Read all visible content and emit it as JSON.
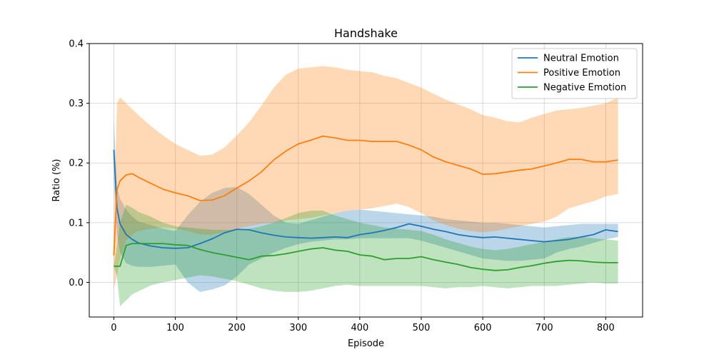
{
  "chart_data": {
    "type": "line",
    "title": "Handshake",
    "xlabel": "Episode",
    "ylabel": "Ratio (%)",
    "xlim": [
      -40,
      860
    ],
    "ylim": [
      -0.058,
      0.4
    ],
    "xticks": [
      0,
      100,
      200,
      300,
      400,
      500,
      600,
      700,
      800
    ],
    "yticks": [
      0.0,
      0.1,
      0.2,
      0.3,
      0.4
    ],
    "xtick_labels": [
      "0",
      "100",
      "200",
      "300",
      "400",
      "500",
      "600",
      "700",
      "800"
    ],
    "ytick_labels": [
      "0.0",
      "0.1",
      "0.2",
      "0.3",
      "0.4"
    ],
    "grid": true,
    "legend_position": "top-right",
    "series": [
      {
        "name": "Neutral Emotion",
        "color": "#1f77b4",
        "x": [
          0,
          5,
          10,
          20,
          30,
          40,
          60,
          80,
          100,
          120,
          140,
          160,
          180,
          200,
          220,
          240,
          260,
          280,
          300,
          320,
          340,
          360,
          380,
          400,
          420,
          440,
          460,
          480,
          500,
          520,
          540,
          560,
          580,
          600,
          620,
          640,
          660,
          680,
          700,
          720,
          740,
          760,
          780,
          800,
          820
        ],
        "y": [
          0.222,
          0.125,
          0.098,
          0.08,
          0.072,
          0.066,
          0.061,
          0.058,
          0.057,
          0.058,
          0.065,
          0.073,
          0.083,
          0.089,
          0.088,
          0.083,
          0.079,
          0.076,
          0.075,
          0.074,
          0.075,
          0.076,
          0.075,
          0.08,
          0.083,
          0.087,
          0.092,
          0.098,
          0.094,
          0.089,
          0.085,
          0.08,
          0.077,
          0.075,
          0.076,
          0.074,
          0.072,
          0.07,
          0.068,
          0.07,
          0.072,
          0.076,
          0.08,
          0.088,
          0.085
        ],
        "lower": [
          0.17,
          0.08,
          0.05,
          0.032,
          0.028,
          0.026,
          0.026,
          0.028,
          0.03,
          0.0,
          -0.016,
          -0.012,
          -0.005,
          0.01,
          0.03,
          0.04,
          0.05,
          0.058,
          0.064,
          0.068,
          0.07,
          0.072,
          0.072,
          0.074,
          0.074,
          0.074,
          0.074,
          0.074,
          0.07,
          0.064,
          0.058,
          0.052,
          0.046,
          0.04,
          0.038,
          0.036,
          0.036,
          0.038,
          0.04,
          0.05,
          0.056,
          0.06,
          0.066,
          0.072,
          0.076
        ],
        "upper": [
          0.275,
          0.16,
          0.14,
          0.122,
          0.11,
          0.102,
          0.096,
          0.09,
          0.086,
          0.112,
          0.135,
          0.15,
          0.158,
          0.16,
          0.148,
          0.13,
          0.112,
          0.1,
          0.098,
          0.104,
          0.11,
          0.116,
          0.12,
          0.122,
          0.12,
          0.118,
          0.116,
          0.114,
          0.112,
          0.11,
          0.106,
          0.104,
          0.102,
          0.1,
          0.1,
          0.098,
          0.096,
          0.094,
          0.092,
          0.094,
          0.096,
          0.098,
          0.098,
          0.098,
          0.098
        ]
      },
      {
        "name": "Positive Emotion",
        "color": "#ff7f0e",
        "x": [
          0,
          5,
          10,
          20,
          30,
          40,
          60,
          80,
          100,
          120,
          140,
          160,
          180,
          200,
          220,
          240,
          260,
          280,
          300,
          320,
          340,
          360,
          380,
          400,
          420,
          440,
          460,
          480,
          500,
          520,
          540,
          560,
          580,
          600,
          620,
          640,
          660,
          680,
          700,
          720,
          740,
          760,
          780,
          800,
          820
        ],
        "y": [
          0.045,
          0.155,
          0.17,
          0.18,
          0.182,
          0.176,
          0.166,
          0.156,
          0.15,
          0.145,
          0.137,
          0.138,
          0.145,
          0.158,
          0.17,
          0.185,
          0.205,
          0.22,
          0.232,
          0.238,
          0.245,
          0.242,
          0.238,
          0.238,
          0.236,
          0.236,
          0.236,
          0.23,
          0.222,
          0.21,
          0.202,
          0.196,
          0.19,
          0.181,
          0.182,
          0.185,
          0.188,
          0.19,
          0.195,
          0.2,
          0.206,
          0.206,
          0.202,
          0.202,
          0.205
        ],
        "lower": [
          -0.01,
          0.01,
          0.04,
          0.07,
          0.08,
          0.086,
          0.09,
          0.092,
          0.09,
          0.086,
          0.08,
          0.08,
          0.084,
          0.09,
          0.094,
          0.098,
          0.1,
          0.104,
          0.106,
          0.108,
          0.112,
          0.116,
          0.12,
          0.122,
          0.124,
          0.128,
          0.132,
          0.126,
          0.116,
          0.104,
          0.096,
          0.09,
          0.086,
          0.084,
          0.086,
          0.09,
          0.094,
          0.098,
          0.102,
          0.11,
          0.124,
          0.13,
          0.136,
          0.144,
          0.148
        ],
        "upper": [
          0.09,
          0.3,
          0.31,
          0.3,
          0.29,
          0.28,
          0.262,
          0.246,
          0.232,
          0.222,
          0.212,
          0.214,
          0.226,
          0.246,
          0.268,
          0.296,
          0.326,
          0.348,
          0.358,
          0.36,
          0.362,
          0.36,
          0.356,
          0.354,
          0.352,
          0.346,
          0.342,
          0.334,
          0.326,
          0.316,
          0.306,
          0.298,
          0.29,
          0.28,
          0.276,
          0.27,
          0.268,
          0.276,
          0.282,
          0.288,
          0.29,
          0.292,
          0.296,
          0.3,
          0.31
        ]
      },
      {
        "name": "Negative Emotion",
        "color": "#2ca02c",
        "x": [
          0,
          5,
          10,
          20,
          30,
          40,
          60,
          80,
          100,
          120,
          140,
          160,
          180,
          200,
          220,
          240,
          260,
          280,
          300,
          320,
          340,
          360,
          380,
          400,
          420,
          440,
          460,
          480,
          500,
          520,
          540,
          560,
          580,
          600,
          620,
          640,
          660,
          680,
          700,
          720,
          740,
          760,
          780,
          800,
          820
        ],
        "y": [
          0.027,
          0.027,
          0.027,
          0.062,
          0.065,
          0.065,
          0.065,
          0.065,
          0.063,
          0.062,
          0.055,
          0.05,
          0.046,
          0.042,
          0.038,
          0.044,
          0.045,
          0.048,
          0.052,
          0.056,
          0.058,
          0.054,
          0.052,
          0.046,
          0.044,
          0.038,
          0.04,
          0.04,
          0.043,
          0.038,
          0.034,
          0.03,
          0.025,
          0.022,
          0.02,
          0.021,
          0.025,
          0.028,
          0.032,
          0.035,
          0.037,
          0.036,
          0.034,
          0.033,
          0.033
        ],
        "lower": [
          0.027,
          0.01,
          -0.04,
          -0.03,
          -0.02,
          -0.015,
          -0.005,
          0.0,
          0.004,
          0.008,
          0.012,
          0.01,
          0.006,
          0.002,
          -0.004,
          -0.01,
          -0.014,
          -0.016,
          -0.016,
          -0.014,
          -0.01,
          -0.006,
          -0.004,
          -0.006,
          -0.006,
          -0.006,
          -0.006,
          -0.006,
          -0.006,
          -0.008,
          -0.01,
          -0.008,
          -0.008,
          -0.006,
          -0.008,
          -0.01,
          -0.008,
          -0.006,
          -0.006,
          -0.006,
          -0.004,
          -0.002,
          0.0,
          -0.002,
          -0.002
        ],
        "upper": [
          0.027,
          0.06,
          0.1,
          0.13,
          0.125,
          0.118,
          0.11,
          0.1,
          0.094,
          0.092,
          0.09,
          0.088,
          0.088,
          0.088,
          0.09,
          0.094,
          0.1,
          0.108,
          0.116,
          0.12,
          0.12,
          0.112,
          0.106,
          0.1,
          0.096,
          0.092,
          0.09,
          0.088,
          0.086,
          0.08,
          0.072,
          0.066,
          0.06,
          0.056,
          0.054,
          0.056,
          0.06,
          0.064,
          0.068,
          0.072,
          0.076,
          0.076,
          0.074,
          0.072,
          0.07
        ]
      }
    ]
  }
}
